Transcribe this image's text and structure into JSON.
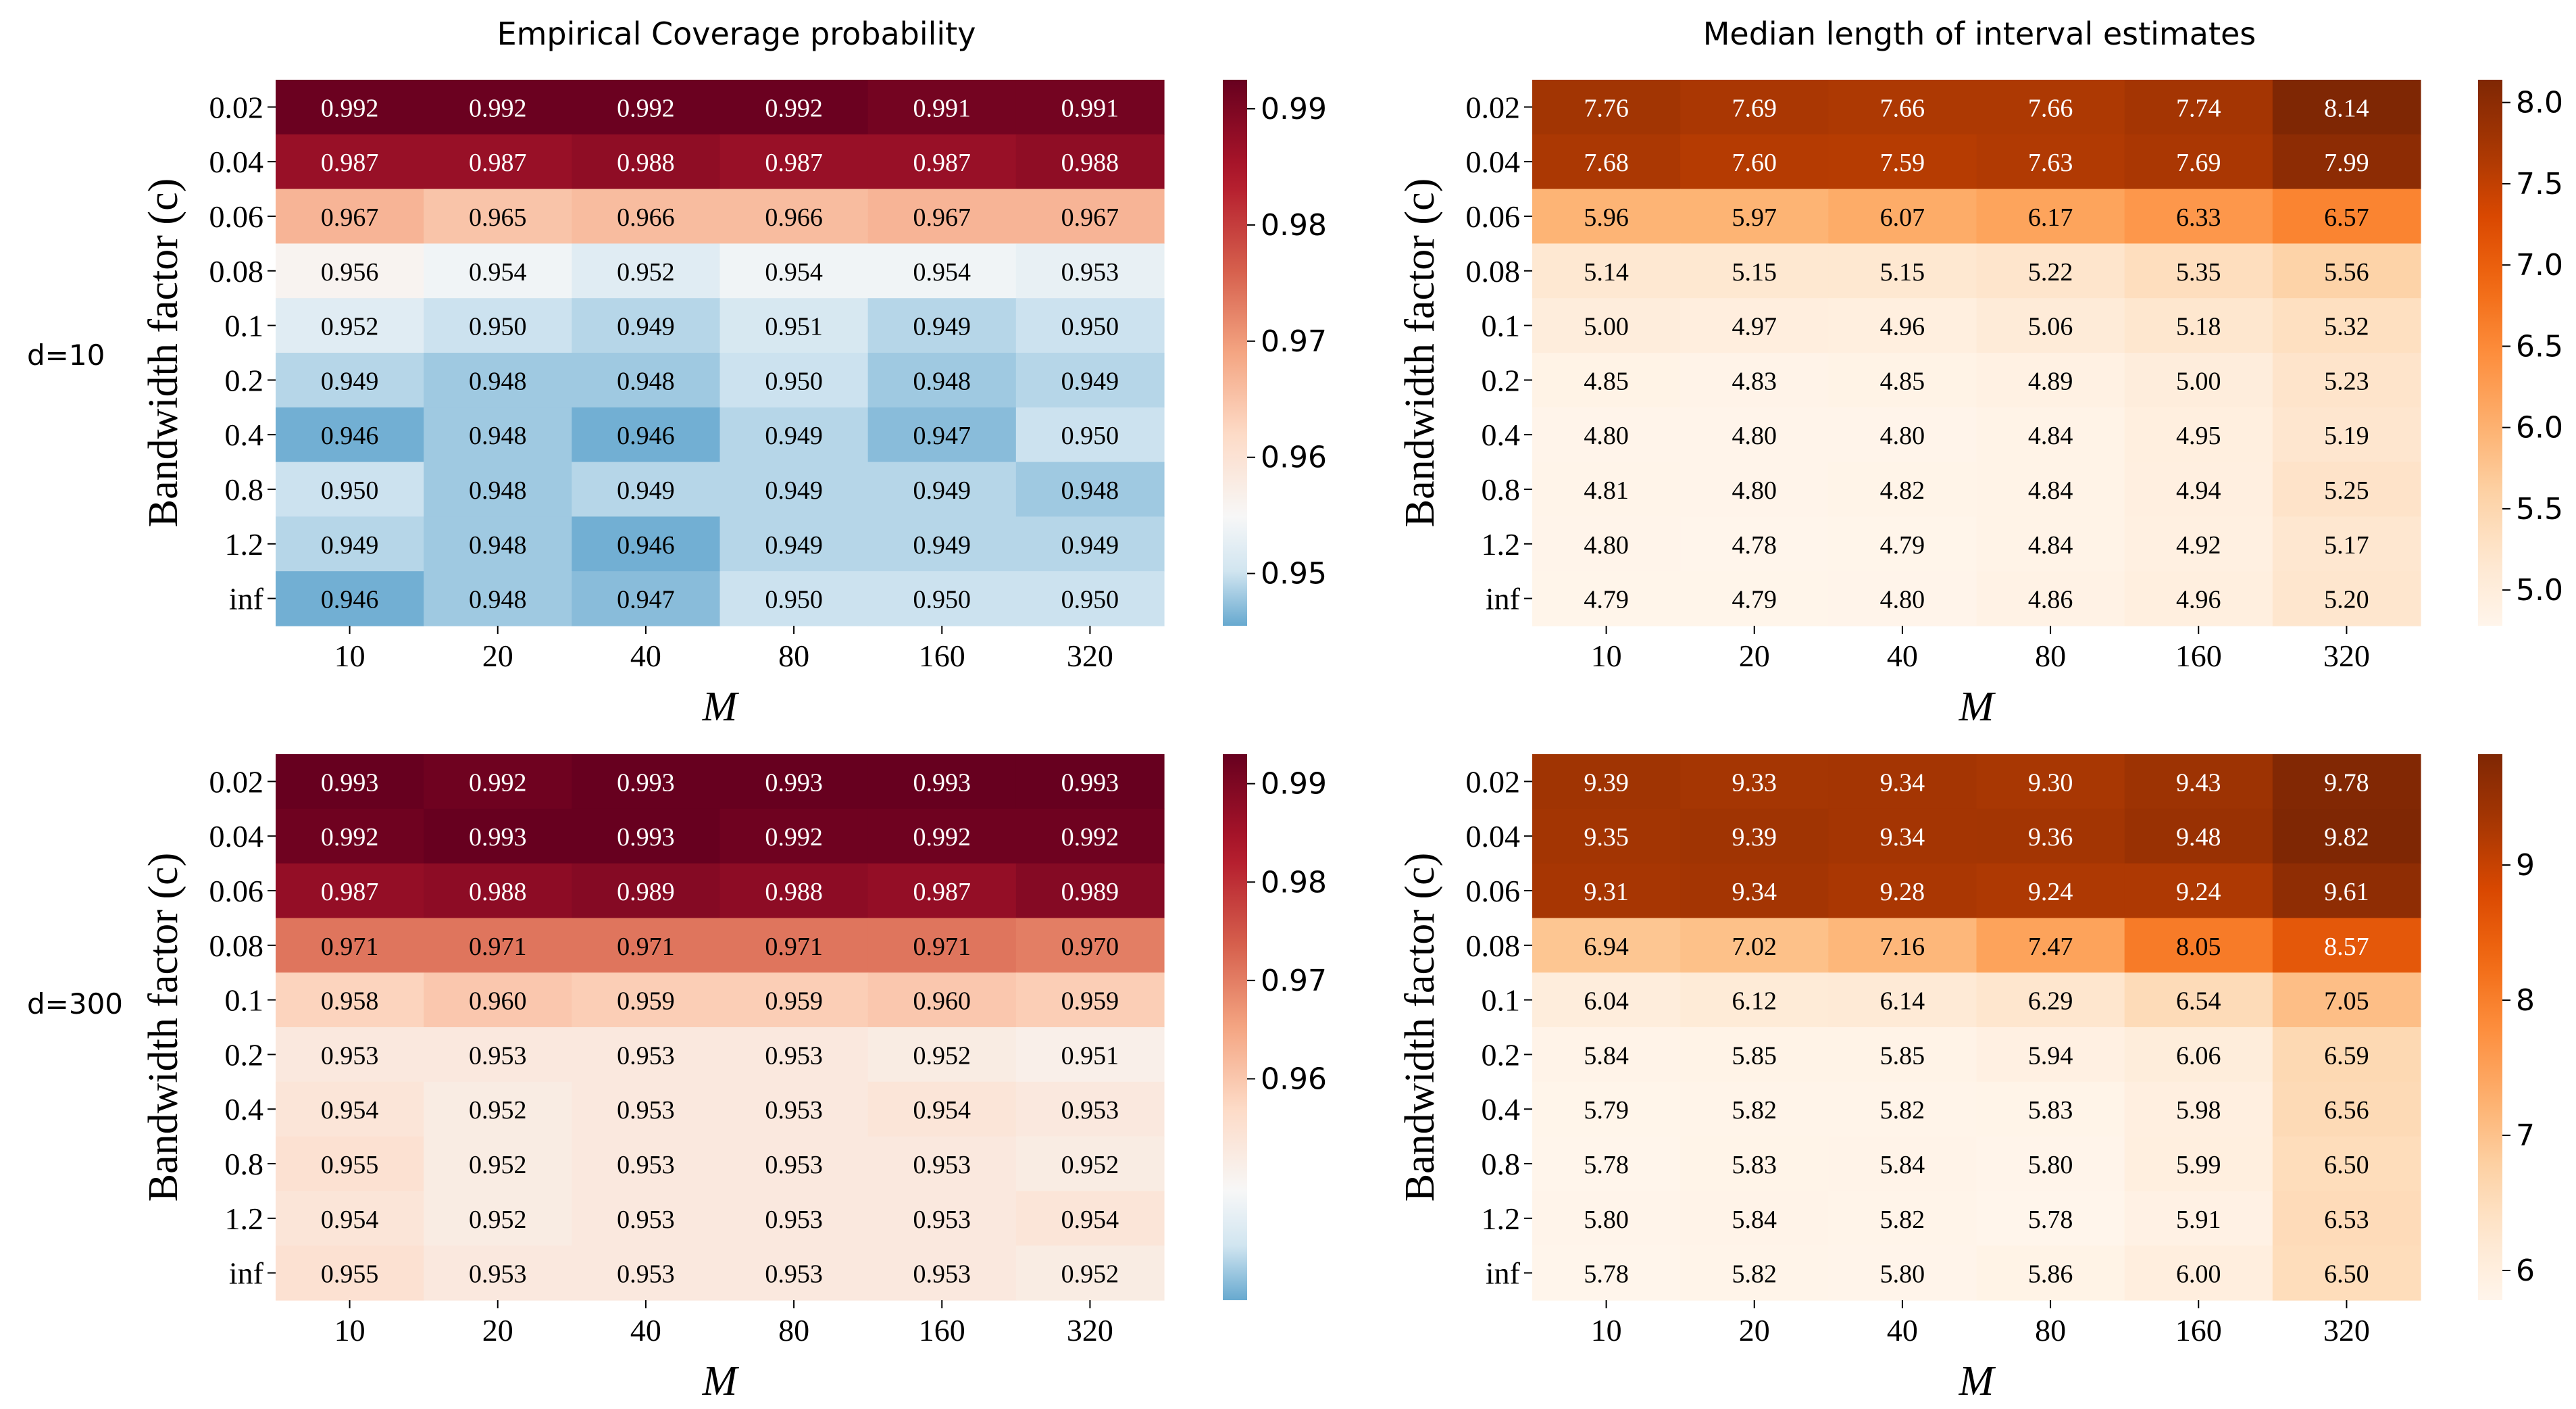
{
  "titles": {
    "left": "Empirical Coverage probability",
    "right": "Median length of interval estimates"
  },
  "row_labels": {
    "top": "d=10",
    "bottom": "d=300"
  },
  "chart_data": [
    {
      "type": "heatmap",
      "title": "Empirical Coverage probability",
      "panel": "d=10",
      "xlabel": "M",
      "ylabel": "Bandwidth factor (c)",
      "x": [
        "10",
        "20",
        "40",
        "80",
        "160",
        "320"
      ],
      "y": [
        "0.02",
        "0.04",
        "0.06",
        "0.08",
        "0.1",
        "0.2",
        "0.4",
        "0.8",
        "1.2",
        "inf"
      ],
      "values": [
        [
          "0.992",
          "0.992",
          "0.992",
          "0.992",
          "0.991",
          "0.991"
        ],
        [
          "0.987",
          "0.987",
          "0.988",
          "0.987",
          "0.987",
          "0.988"
        ],
        [
          "0.967",
          "0.965",
          "0.966",
          "0.966",
          "0.967",
          "0.967"
        ],
        [
          "0.956",
          "0.954",
          "0.952",
          "0.954",
          "0.954",
          "0.953"
        ],
        [
          "0.952",
          "0.950",
          "0.949",
          "0.951",
          "0.949",
          "0.950"
        ],
        [
          "0.949",
          "0.948",
          "0.948",
          "0.950",
          "0.948",
          "0.949"
        ],
        [
          "0.946",
          "0.948",
          "0.946",
          "0.949",
          "0.947",
          "0.950"
        ],
        [
          "0.950",
          "0.948",
          "0.949",
          "0.949",
          "0.949",
          "0.948"
        ],
        [
          "0.949",
          "0.948",
          "0.946",
          "0.949",
          "0.949",
          "0.949"
        ],
        [
          "0.946",
          "0.948",
          "0.947",
          "0.950",
          "0.950",
          "0.950"
        ]
      ],
      "colormap": "RdBu_r",
      "vmin": 0.9455,
      "vmax": 0.9925,
      "colorbar_ticks": [
        "0.99",
        "0.98",
        "0.97",
        "0.96",
        "0.95"
      ]
    },
    {
      "type": "heatmap",
      "title": "Median length of interval estimates",
      "panel": "d=10",
      "xlabel": "M",
      "ylabel": "Bandwidth factor (c)",
      "x": [
        "10",
        "20",
        "40",
        "80",
        "160",
        "320"
      ],
      "y": [
        "0.02",
        "0.04",
        "0.06",
        "0.08",
        "0.1",
        "0.2",
        "0.4",
        "0.8",
        "1.2",
        "inf"
      ],
      "values": [
        [
          "7.76",
          "7.69",
          "7.66",
          "7.66",
          "7.74",
          "8.14"
        ],
        [
          "7.68",
          "7.60",
          "7.59",
          "7.63",
          "7.69",
          "7.99"
        ],
        [
          "5.96",
          "5.97",
          "6.07",
          "6.17",
          "6.33",
          "6.57"
        ],
        [
          "5.14",
          "5.15",
          "5.15",
          "5.22",
          "5.35",
          "5.56"
        ],
        [
          "5.00",
          "4.97",
          "4.96",
          "5.06",
          "5.18",
          "5.32"
        ],
        [
          "4.85",
          "4.83",
          "4.85",
          "4.89",
          "5.00",
          "5.23"
        ],
        [
          "4.80",
          "4.80",
          "4.80",
          "4.84",
          "4.95",
          "5.19"
        ],
        [
          "4.81",
          "4.80",
          "4.82",
          "4.84",
          "4.94",
          "5.25"
        ],
        [
          "4.80",
          "4.78",
          "4.79",
          "4.84",
          "4.92",
          "5.17"
        ],
        [
          "4.79",
          "4.79",
          "4.80",
          "4.86",
          "4.96",
          "5.20"
        ]
      ],
      "colormap": "Oranges",
      "vmin": 4.78,
      "vmax": 8.14,
      "colorbar_ticks": [
        "8.0",
        "7.5",
        "7.0",
        "6.5",
        "6.0",
        "5.5",
        "5.0"
      ]
    },
    {
      "type": "heatmap",
      "title": "Empirical Coverage probability",
      "panel": "d=300",
      "xlabel": "M",
      "ylabel": "Bandwidth factor (c)",
      "x": [
        "10",
        "20",
        "40",
        "80",
        "160",
        "320"
      ],
      "y": [
        "0.02",
        "0.04",
        "0.06",
        "0.08",
        "0.1",
        "0.2",
        "0.4",
        "0.8",
        "1.2",
        "inf"
      ],
      "values": [
        [
          "0.993",
          "0.992",
          "0.993",
          "0.993",
          "0.993",
          "0.993"
        ],
        [
          "0.992",
          "0.993",
          "0.993",
          "0.992",
          "0.992",
          "0.992"
        ],
        [
          "0.987",
          "0.988",
          "0.989",
          "0.988",
          "0.987",
          "0.989"
        ],
        [
          "0.971",
          "0.971",
          "0.971",
          "0.971",
          "0.971",
          "0.970"
        ],
        [
          "0.958",
          "0.960",
          "0.959",
          "0.959",
          "0.960",
          "0.959"
        ],
        [
          "0.953",
          "0.953",
          "0.953",
          "0.953",
          "0.952",
          "0.951"
        ],
        [
          "0.954",
          "0.952",
          "0.953",
          "0.953",
          "0.954",
          "0.953"
        ],
        [
          "0.955",
          "0.952",
          "0.953",
          "0.953",
          "0.953",
          "0.952"
        ],
        [
          "0.954",
          "0.952",
          "0.953",
          "0.953",
          "0.953",
          "0.954"
        ],
        [
          "0.955",
          "0.953",
          "0.953",
          "0.953",
          "0.953",
          "0.952"
        ]
      ],
      "colormap": "RdBu_r",
      "vmin": 0.9375,
      "vmax": 0.993,
      "colorbar_ticks": [
        "0.99",
        "0.98",
        "0.97",
        "0.96"
      ]
    },
    {
      "type": "heatmap",
      "title": "Median length of interval estimates",
      "panel": "d=300",
      "xlabel": "M",
      "ylabel": "Bandwidth factor (c)",
      "x": [
        "10",
        "20",
        "40",
        "80",
        "160",
        "320"
      ],
      "y": [
        "0.02",
        "0.04",
        "0.06",
        "0.08",
        "0.1",
        "0.2",
        "0.4",
        "0.8",
        "1.2",
        "inf"
      ],
      "values": [
        [
          "9.39",
          "9.33",
          "9.34",
          "9.30",
          "9.43",
          "9.78"
        ],
        [
          "9.35",
          "9.39",
          "9.34",
          "9.36",
          "9.48",
          "9.82"
        ],
        [
          "9.31",
          "9.34",
          "9.28",
          "9.24",
          "9.24",
          "9.61"
        ],
        [
          "6.94",
          "7.02",
          "7.16",
          "7.47",
          "8.05",
          "8.57"
        ],
        [
          "6.04",
          "6.12",
          "6.14",
          "6.29",
          "6.54",
          "7.05"
        ],
        [
          "5.84",
          "5.85",
          "5.85",
          "5.94",
          "6.06",
          "6.59"
        ],
        [
          "5.79",
          "5.82",
          "5.82",
          "5.83",
          "5.98",
          "6.56"
        ],
        [
          "5.78",
          "5.83",
          "5.84",
          "5.80",
          "5.99",
          "6.50"
        ],
        [
          "5.80",
          "5.84",
          "5.82",
          "5.78",
          "5.91",
          "6.53"
        ],
        [
          "5.78",
          "5.82",
          "5.80",
          "5.86",
          "6.00",
          "6.50"
        ]
      ],
      "colormap": "Oranges",
      "vmin": 5.78,
      "vmax": 9.82,
      "colorbar_ticks": [
        "9",
        "8",
        "7",
        "6"
      ]
    }
  ]
}
